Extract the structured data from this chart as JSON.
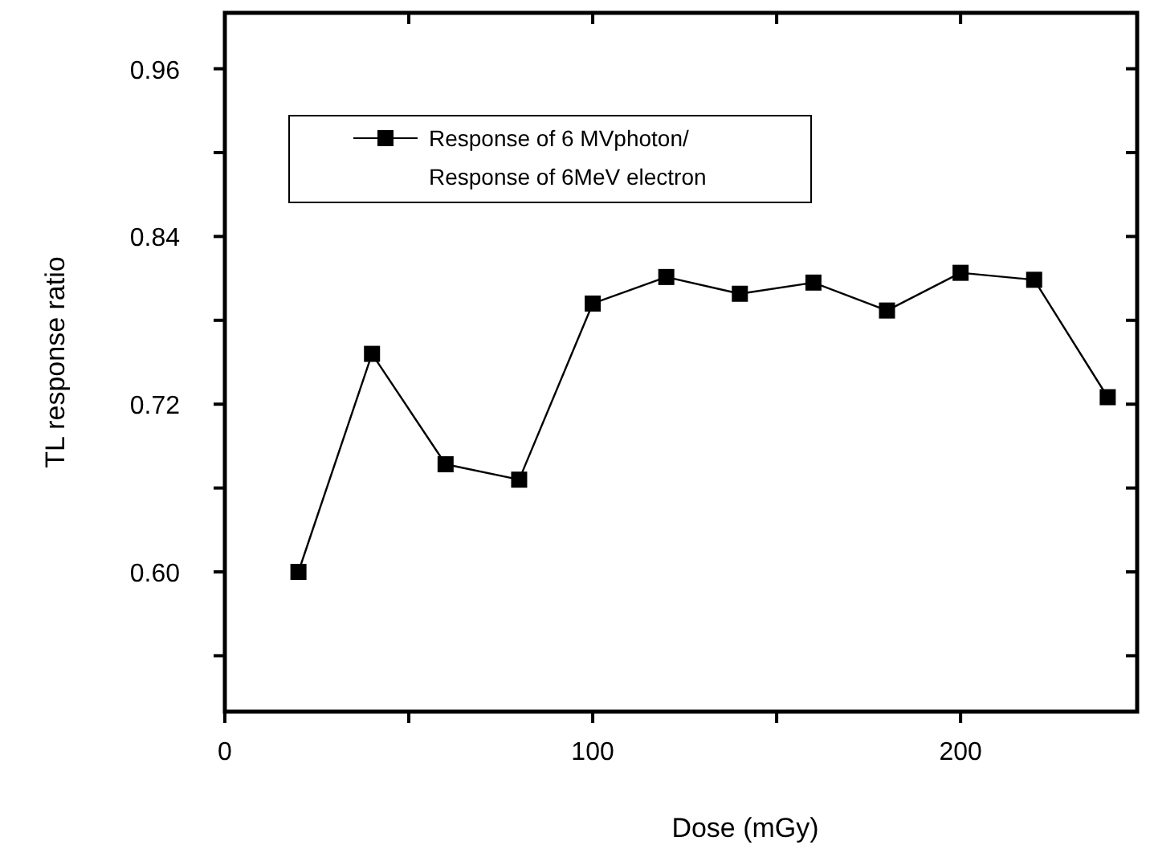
{
  "chart_data": {
    "type": "line",
    "xlabel": "Dose (mGy)",
    "ylabel": "TL response ratio",
    "x": [
      20,
      40,
      60,
      80,
      100,
      120,
      140,
      160,
      180,
      200,
      220,
      240
    ],
    "series": [
      {
        "name": "Response of 6 MVphoton/\nResponse of 6MeV electron",
        "color": "#000000",
        "values": [
          0.6,
          0.756,
          0.677,
          0.666,
          0.792,
          0.811,
          0.799,
          0.807,
          0.787,
          0.814,
          0.809,
          0.725
        ]
      }
    ],
    "xlim": [
      0,
      248
    ],
    "ylim": [
      0.5,
      1.0
    ],
    "xticks": [
      0,
      {
        "value": 50,
        "label": null
      },
      100,
      {
        "value": 150,
        "label": null
      },
      200
    ],
    "yticks": [
      {
        "value": 0.54,
        "label": null
      },
      {
        "value": 0.6,
        "label": "0.60"
      },
      {
        "value": 0.66,
        "label": null
      },
      {
        "value": 0.72,
        "label": "0.72"
      },
      {
        "value": 0.78,
        "label": null
      },
      {
        "value": 0.84,
        "label": "0.84"
      },
      {
        "value": 0.9,
        "label": null
      },
      {
        "value": 0.96,
        "label": "0.96"
      }
    ],
    "marker": "square",
    "line_style": "solid",
    "legend": "top left",
    "grid": false
  }
}
